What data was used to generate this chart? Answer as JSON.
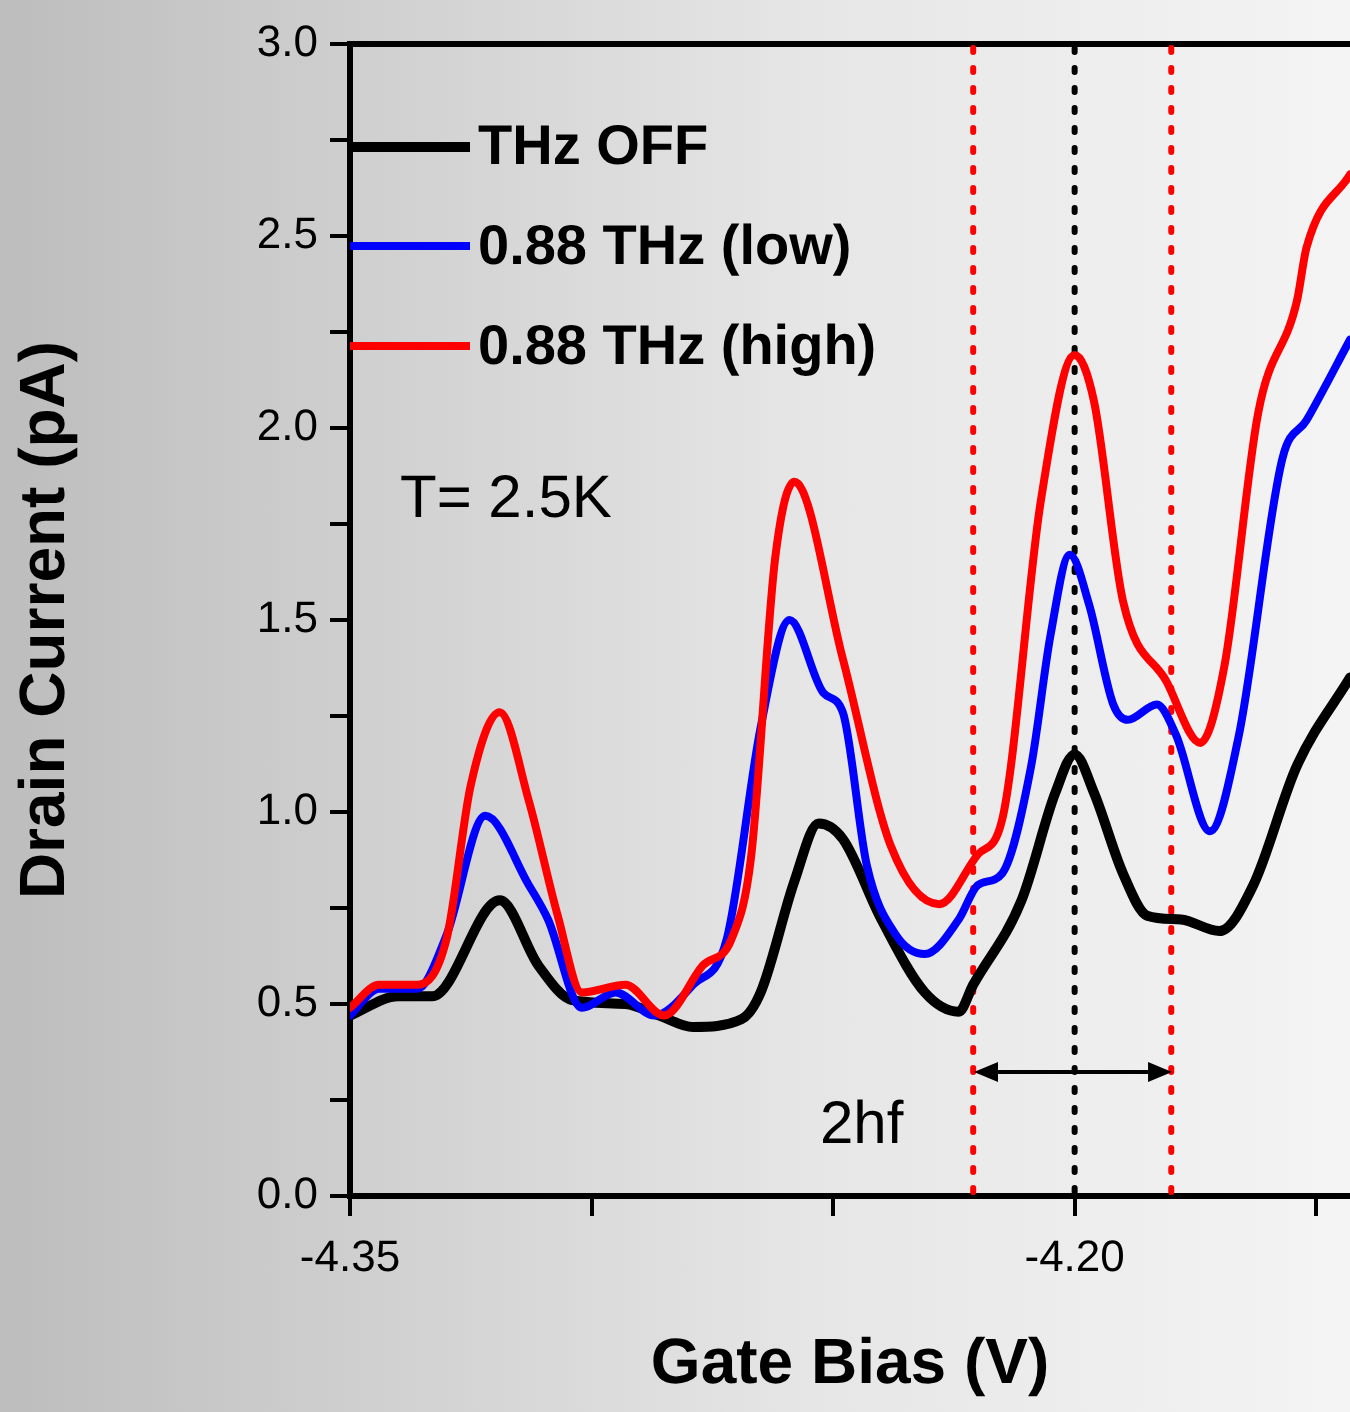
{
  "chart_data": {
    "type": "line",
    "xlabel": "Gate Bias (V)",
    "ylabel": "Drain Current (pA)",
    "xlim": [
      -4.35,
      -4.143
    ],
    "xticks": [
      {
        "value": -4.35,
        "label": "-4.35"
      },
      {
        "value": -4.3,
        "label": null
      },
      {
        "value": -4.25,
        "label": null
      },
      {
        "value": -4.2,
        "label": "-4.20"
      },
      {
        "value": -4.15,
        "label": null
      }
    ],
    "ylim": [
      0,
      3
    ],
    "yticks": [
      {
        "value": 0,
        "label": "0.0"
      },
      {
        "value": 0.25,
        "label": null
      },
      {
        "value": 0.5,
        "label": "0.5"
      },
      {
        "value": 0.75,
        "label": null
      },
      {
        "value": 1,
        "label": "1.0"
      },
      {
        "value": 1.25,
        "label": null
      },
      {
        "value": 1.5,
        "label": "1.5"
      },
      {
        "value": 1.75,
        "label": null
      },
      {
        "value": 2,
        "label": "2.0"
      },
      {
        "value": 2.25,
        "label": null
      },
      {
        "value": 2.5,
        "label": "2.5"
      },
      {
        "value": 2.75,
        "label": null
      },
      {
        "value": 3,
        "label": "3.0"
      }
    ],
    "grid": false,
    "legend": "top left",
    "marker": "none",
    "line_style": "solid",
    "series": [
      {
        "name": "THz OFF",
        "color": "#000000",
        "x": [
          -4.35,
          -4.34,
          -4.333,
          -4.319,
          -4.311,
          -4.304,
          -4.293,
          -4.286,
          -4.279,
          -4.269,
          -4.265,
          -4.258,
          -4.253,
          -4.248,
          -4.24,
          -4.231,
          -4.224,
          -4.221,
          -4.211,
          -4.204,
          -4.2,
          -4.196,
          -4.19,
          -4.185,
          -4.178,
          -4.17,
          -4.163,
          -4.154,
          -4.143
        ],
        "values": [
          0.47,
          0.52,
          0.52,
          0.77,
          0.6,
          0.51,
          0.5,
          0.47,
          0.44,
          0.46,
          0.53,
          0.82,
          0.97,
          0.93,
          0.72,
          0.53,
          0.48,
          0.55,
          0.77,
          1.05,
          1.15,
          1.05,
          0.84,
          0.73,
          0.72,
          0.69,
          0.81,
          1.12,
          1.35
        ]
      },
      {
        "name": "0.88 THz (low)",
        "color": "#0000ff",
        "x": [
          -4.35,
          -4.344,
          -4.336,
          -4.33,
          -4.322,
          -4.313,
          -4.309,
          -4.302,
          -4.295,
          -4.287,
          -4.279,
          -4.272,
          -4.265,
          -4.259,
          -4.252,
          -4.248,
          -4.243,
          -4.237,
          -4.231,
          -4.224,
          -4.22,
          -4.215,
          -4.209,
          -4.205,
          -4.201,
          -4.197,
          -4.192,
          -4.189,
          -4.183,
          -4.179,
          -4.172,
          -4.166,
          -4.157,
          -4.152,
          -4.143
        ],
        "values": [
          0.47,
          0.54,
          0.54,
          0.68,
          0.99,
          0.81,
          0.72,
          0.49,
          0.53,
          0.47,
          0.55,
          0.67,
          1.22,
          1.5,
          1.31,
          1.26,
          0.86,
          0.68,
          0.63,
          0.72,
          0.81,
          0.84,
          1.12,
          1.46,
          1.67,
          1.54,
          1.28,
          1.24,
          1.28,
          1.2,
          0.95,
          1.2,
          1.92,
          2.02,
          2.23
        ]
      },
      {
        "name": "0.88 THz (high)",
        "color": "#ff0000",
        "x": [
          -4.35,
          -4.344,
          -4.336,
          -4.33,
          -4.325,
          -4.319,
          -4.313,
          -4.307,
          -4.302,
          -4.293,
          -4.285,
          -4.277,
          -4.271,
          -4.267,
          -4.262,
          -4.258,
          -4.248,
          -4.238,
          -4.228,
          -4.22,
          -4.215,
          -4.207,
          -4.2,
          -4.196,
          -4.19,
          -4.181,
          -4.174,
          -4.169,
          -4.162,
          -4.154,
          -4.152,
          -4.143
        ],
        "values": [
          0.49,
          0.55,
          0.55,
          0.67,
          1.07,
          1.26,
          1.03,
          0.73,
          0.53,
          0.55,
          0.47,
          0.6,
          0.67,
          0.88,
          1.66,
          1.86,
          1.4,
          0.91,
          0.76,
          0.89,
          0.98,
          1.81,
          2.19,
          2.07,
          1.55,
          1.34,
          1.18,
          1.38,
          2.04,
          2.33,
          2.47,
          2.66
        ]
      }
    ],
    "ref_lines": [
      {
        "axis": "x",
        "value": -4.221,
        "color": "#ff0000",
        "line_style": "dotted"
      },
      {
        "axis": "x",
        "value": -4.2,
        "color": "#000000",
        "line_style": "dotted"
      },
      {
        "axis": "x",
        "value": -4.18,
        "color": "#ff0000",
        "line_style": "dotted"
      }
    ],
    "annotations": [
      "T= 2.5K",
      "2hf"
    ]
  }
}
